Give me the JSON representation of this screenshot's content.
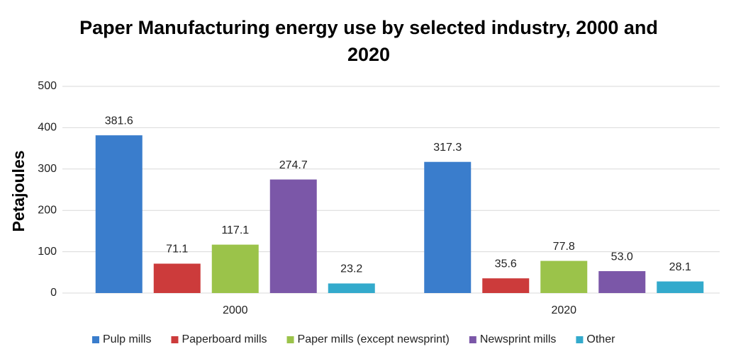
{
  "chart_data": {
    "type": "bar",
    "title": "Paper Manufacturing energy use by selected industry, 2000 and 2020",
    "y_label": "Petajoules",
    "categories": [
      "2000",
      "2020"
    ],
    "series": [
      {
        "name": "Pulp mills",
        "color": "#3a7dcc",
        "values": [
          381.6,
          317.3
        ],
        "value_labels": [
          "381.6",
          "317.3"
        ]
      },
      {
        "name": "Paperboard mills",
        "color": "#cc3b3b",
        "values": [
          71.1,
          35.6
        ],
        "value_labels": [
          "71.1",
          "35.6"
        ]
      },
      {
        "name": "Paper mills (except newsprint)",
        "color": "#9bc34a",
        "values": [
          117.1,
          77.8
        ],
        "value_labels": [
          "117.1",
          "77.8"
        ]
      },
      {
        "name": "Newsprint mills",
        "color": "#7b57a8",
        "values": [
          274.7,
          53.0
        ],
        "value_labels": [
          "274.7",
          "53.0"
        ]
      },
      {
        "name": "Other",
        "color": "#33aacc",
        "values": [
          23.2,
          28.1
        ],
        "value_labels": [
          "23.2",
          "28.1"
        ]
      }
    ],
    "ylim": [
      0,
      500
    ],
    "yticks": [
      0,
      100,
      200,
      300,
      400,
      500
    ],
    "grid": true,
    "legend": "bottom"
  }
}
